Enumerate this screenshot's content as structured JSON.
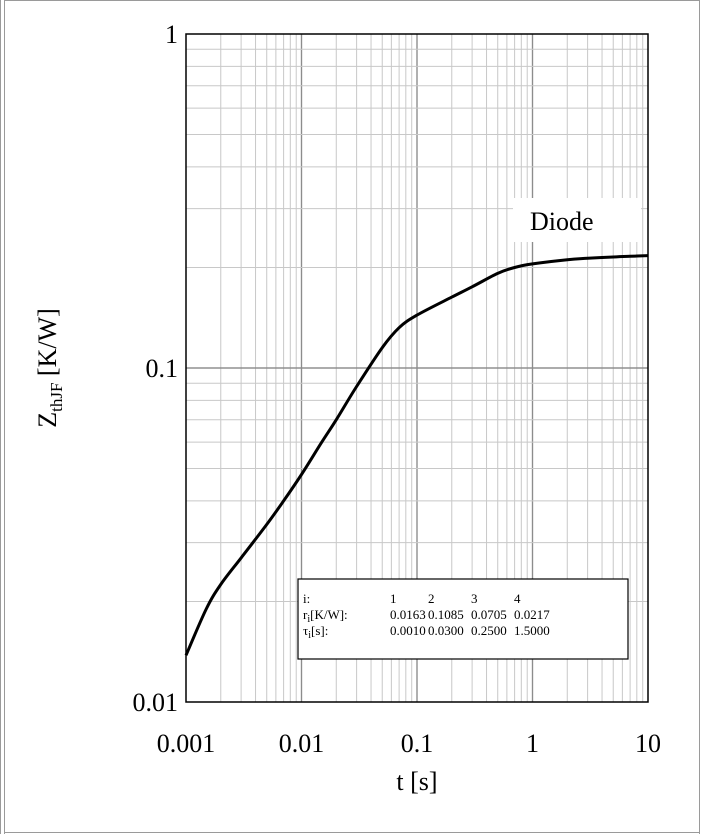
{
  "chart_data": {
    "type": "line",
    "xlabel": "t [s]",
    "ylabel_main": "Z",
    "ylabel_sub": "thJF",
    "ylabel_unit": " [K/W]",
    "xscale": "log",
    "yscale": "log",
    "xlim": [
      0.001,
      10
    ],
    "ylim": [
      0.01,
      1
    ],
    "xticks": [
      "0.001",
      "0.01",
      "0.1",
      "1",
      "10"
    ],
    "yticks": [
      "0.01",
      "0.1",
      "1"
    ],
    "grid": true,
    "series": [
      {
        "name": "Diode",
        "x": [
          0.001,
          0.0015,
          0.002,
          0.003,
          0.005,
          0.007,
          0.01,
          0.015,
          0.02,
          0.03,
          0.05,
          0.07,
          0.1,
          0.2,
          0.3,
          0.5,
          0.7,
          1,
          2,
          3,
          5,
          7,
          10
        ],
        "y": [
          0.0138,
          0.019,
          0.0225,
          0.027,
          0.034,
          0.04,
          0.048,
          0.06,
          0.07,
          0.088,
          0.115,
          0.132,
          0.144,
          0.163,
          0.175,
          0.192,
          0.2,
          0.205,
          0.211,
          0.213,
          0.215,
          0.216,
          0.217
        ]
      }
    ],
    "params_table": {
      "rows": [
        {
          "label": "i:",
          "values": [
            "1",
            "2",
            "3",
            "4"
          ]
        },
        {
          "label_main": "r",
          "label_sub": "i",
          "label_unit": "[K/W]:",
          "values": [
            "0.0163",
            "0.1085",
            "0.0705",
            "0.0217"
          ]
        },
        {
          "label_main": "τ",
          "label_sub": "i",
          "label_unit": "[s]:",
          "values": [
            "0.0010",
            "0.0300",
            "0.2500",
            "1.5000"
          ]
        }
      ]
    }
  }
}
